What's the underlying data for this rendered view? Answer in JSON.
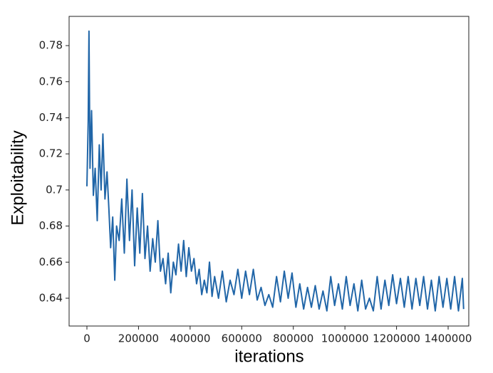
{
  "chart_data": {
    "type": "line",
    "x_label": "iterations",
    "y_label": "Exploitability",
    "x": [
      0,
      5000,
      8000,
      12000,
      18000,
      25000,
      32000,
      40000,
      48000,
      55000,
      62000,
      70000,
      78000,
      85000,
      92000,
      100000,
      108000,
      115000,
      125000,
      135000,
      145000,
      155000,
      165000,
      175000,
      185000,
      195000,
      205000,
      215000,
      225000,
      235000,
      245000,
      255000,
      265000,
      275000,
      285000,
      295000,
      305000,
      315000,
      325000,
      335000,
      345000,
      355000,
      365000,
      375000,
      385000,
      395000,
      405000,
      415000,
      425000,
      435000,
      445000,
      455000,
      465000,
      475000,
      485000,
      495000,
      510000,
      525000,
      540000,
      555000,
      570000,
      585000,
      600000,
      615000,
      630000,
      645000,
      660000,
      675000,
      690000,
      705000,
      720000,
      735000,
      750000,
      765000,
      780000,
      795000,
      810000,
      825000,
      840000,
      855000,
      870000,
      885000,
      900000,
      915000,
      930000,
      945000,
      960000,
      975000,
      990000,
      1005000,
      1020000,
      1035000,
      1050000,
      1065000,
      1080000,
      1095000,
      1110000,
      1125000,
      1140000,
      1155000,
      1170000,
      1185000,
      1200000,
      1215000,
      1230000,
      1245000,
      1260000,
      1275000,
      1290000,
      1305000,
      1320000,
      1335000,
      1350000,
      1365000,
      1380000,
      1395000,
      1410000,
      1425000,
      1440000,
      1455000,
      1460000
    ],
    "series": [
      {
        "color": "#2166a8",
        "values": [
          0.702,
          0.738,
          0.788,
          0.712,
          0.744,
          0.697,
          0.712,
          0.683,
          0.725,
          0.7,
          0.731,
          0.695,
          0.71,
          0.69,
          0.668,
          0.685,
          0.65,
          0.68,
          0.672,
          0.695,
          0.665,
          0.706,
          0.672,
          0.7,
          0.658,
          0.69,
          0.665,
          0.698,
          0.662,
          0.68,
          0.655,
          0.673,
          0.66,
          0.683,
          0.655,
          0.662,
          0.648,
          0.665,
          0.643,
          0.66,
          0.653,
          0.67,
          0.655,
          0.672,
          0.652,
          0.668,
          0.655,
          0.662,
          0.648,
          0.656,
          0.642,
          0.65,
          0.643,
          0.66,
          0.641,
          0.652,
          0.64,
          0.655,
          0.638,
          0.65,
          0.642,
          0.656,
          0.64,
          0.655,
          0.642,
          0.656,
          0.639,
          0.646,
          0.636,
          0.642,
          0.635,
          0.652,
          0.638,
          0.655,
          0.64,
          0.654,
          0.635,
          0.648,
          0.634,
          0.646,
          0.635,
          0.647,
          0.634,
          0.644,
          0.633,
          0.652,
          0.636,
          0.648,
          0.634,
          0.652,
          0.636,
          0.648,
          0.633,
          0.65,
          0.634,
          0.64,
          0.633,
          0.652,
          0.634,
          0.65,
          0.636,
          0.653,
          0.637,
          0.651,
          0.635,
          0.652,
          0.634,
          0.651,
          0.636,
          0.652,
          0.634,
          0.65,
          0.633,
          0.652,
          0.635,
          0.651,
          0.634,
          0.652,
          0.633,
          0.651,
          0.634
        ]
      }
    ],
    "xlim": [
      -69000,
      1480000
    ],
    "ylim": [
      0.6246,
      0.7962
    ],
    "xticks": [
      0,
      200000,
      400000,
      600000,
      800000,
      1000000,
      1200000,
      1400000
    ],
    "yticks": [
      0.64,
      0.66,
      0.68,
      0.7,
      {
        "value": 0.72,
        "label": "0.72"
      },
      0.74,
      0.76,
      0.78
    ]
  }
}
